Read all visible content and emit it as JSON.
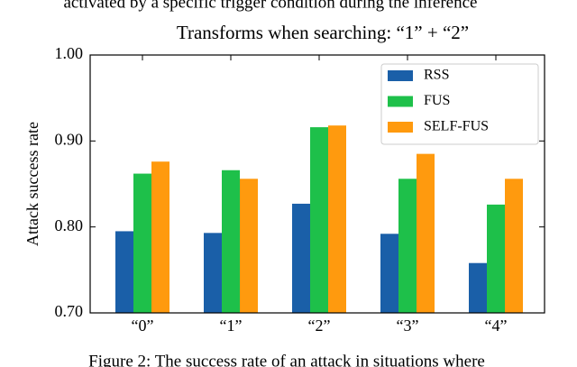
{
  "context": {
    "above": "activated by a specific trigger condition during the inference",
    "caption": "Figure 2: The success rate of an attack in situations where"
  },
  "chart_data": {
    "type": "bar",
    "title": "Transforms when searching:  “1”  +  “2”",
    "y_label": "Attack success rate",
    "categories": [
      "“0”",
      "“1”",
      "“2”",
      "“3”",
      "“4”"
    ],
    "series": [
      {
        "name": "RSS",
        "color": "#1a5fa8",
        "values": [
          0.795,
          0.793,
          0.827,
          0.792,
          0.758
        ]
      },
      {
        "name": "FUS",
        "color": "#1ec04a",
        "values": [
          0.862,
          0.866,
          0.916,
          0.856,
          0.826
        ]
      },
      {
        "name": "SELF-FUS",
        "color": "#ff9a0e",
        "values": [
          0.876,
          0.856,
          0.918,
          0.885,
          0.856
        ]
      }
    ],
    "ylim": [
      0.7,
      1.0
    ],
    "yticks": [
      {
        "value": 0.7,
        "label": "0.70"
      },
      {
        "value": 0.8,
        "label": "0.80"
      },
      {
        "value": 0.9,
        "label": "0.90"
      },
      {
        "value": 1.0,
        "label": "1.00"
      }
    ],
    "legend": "upper right"
  }
}
